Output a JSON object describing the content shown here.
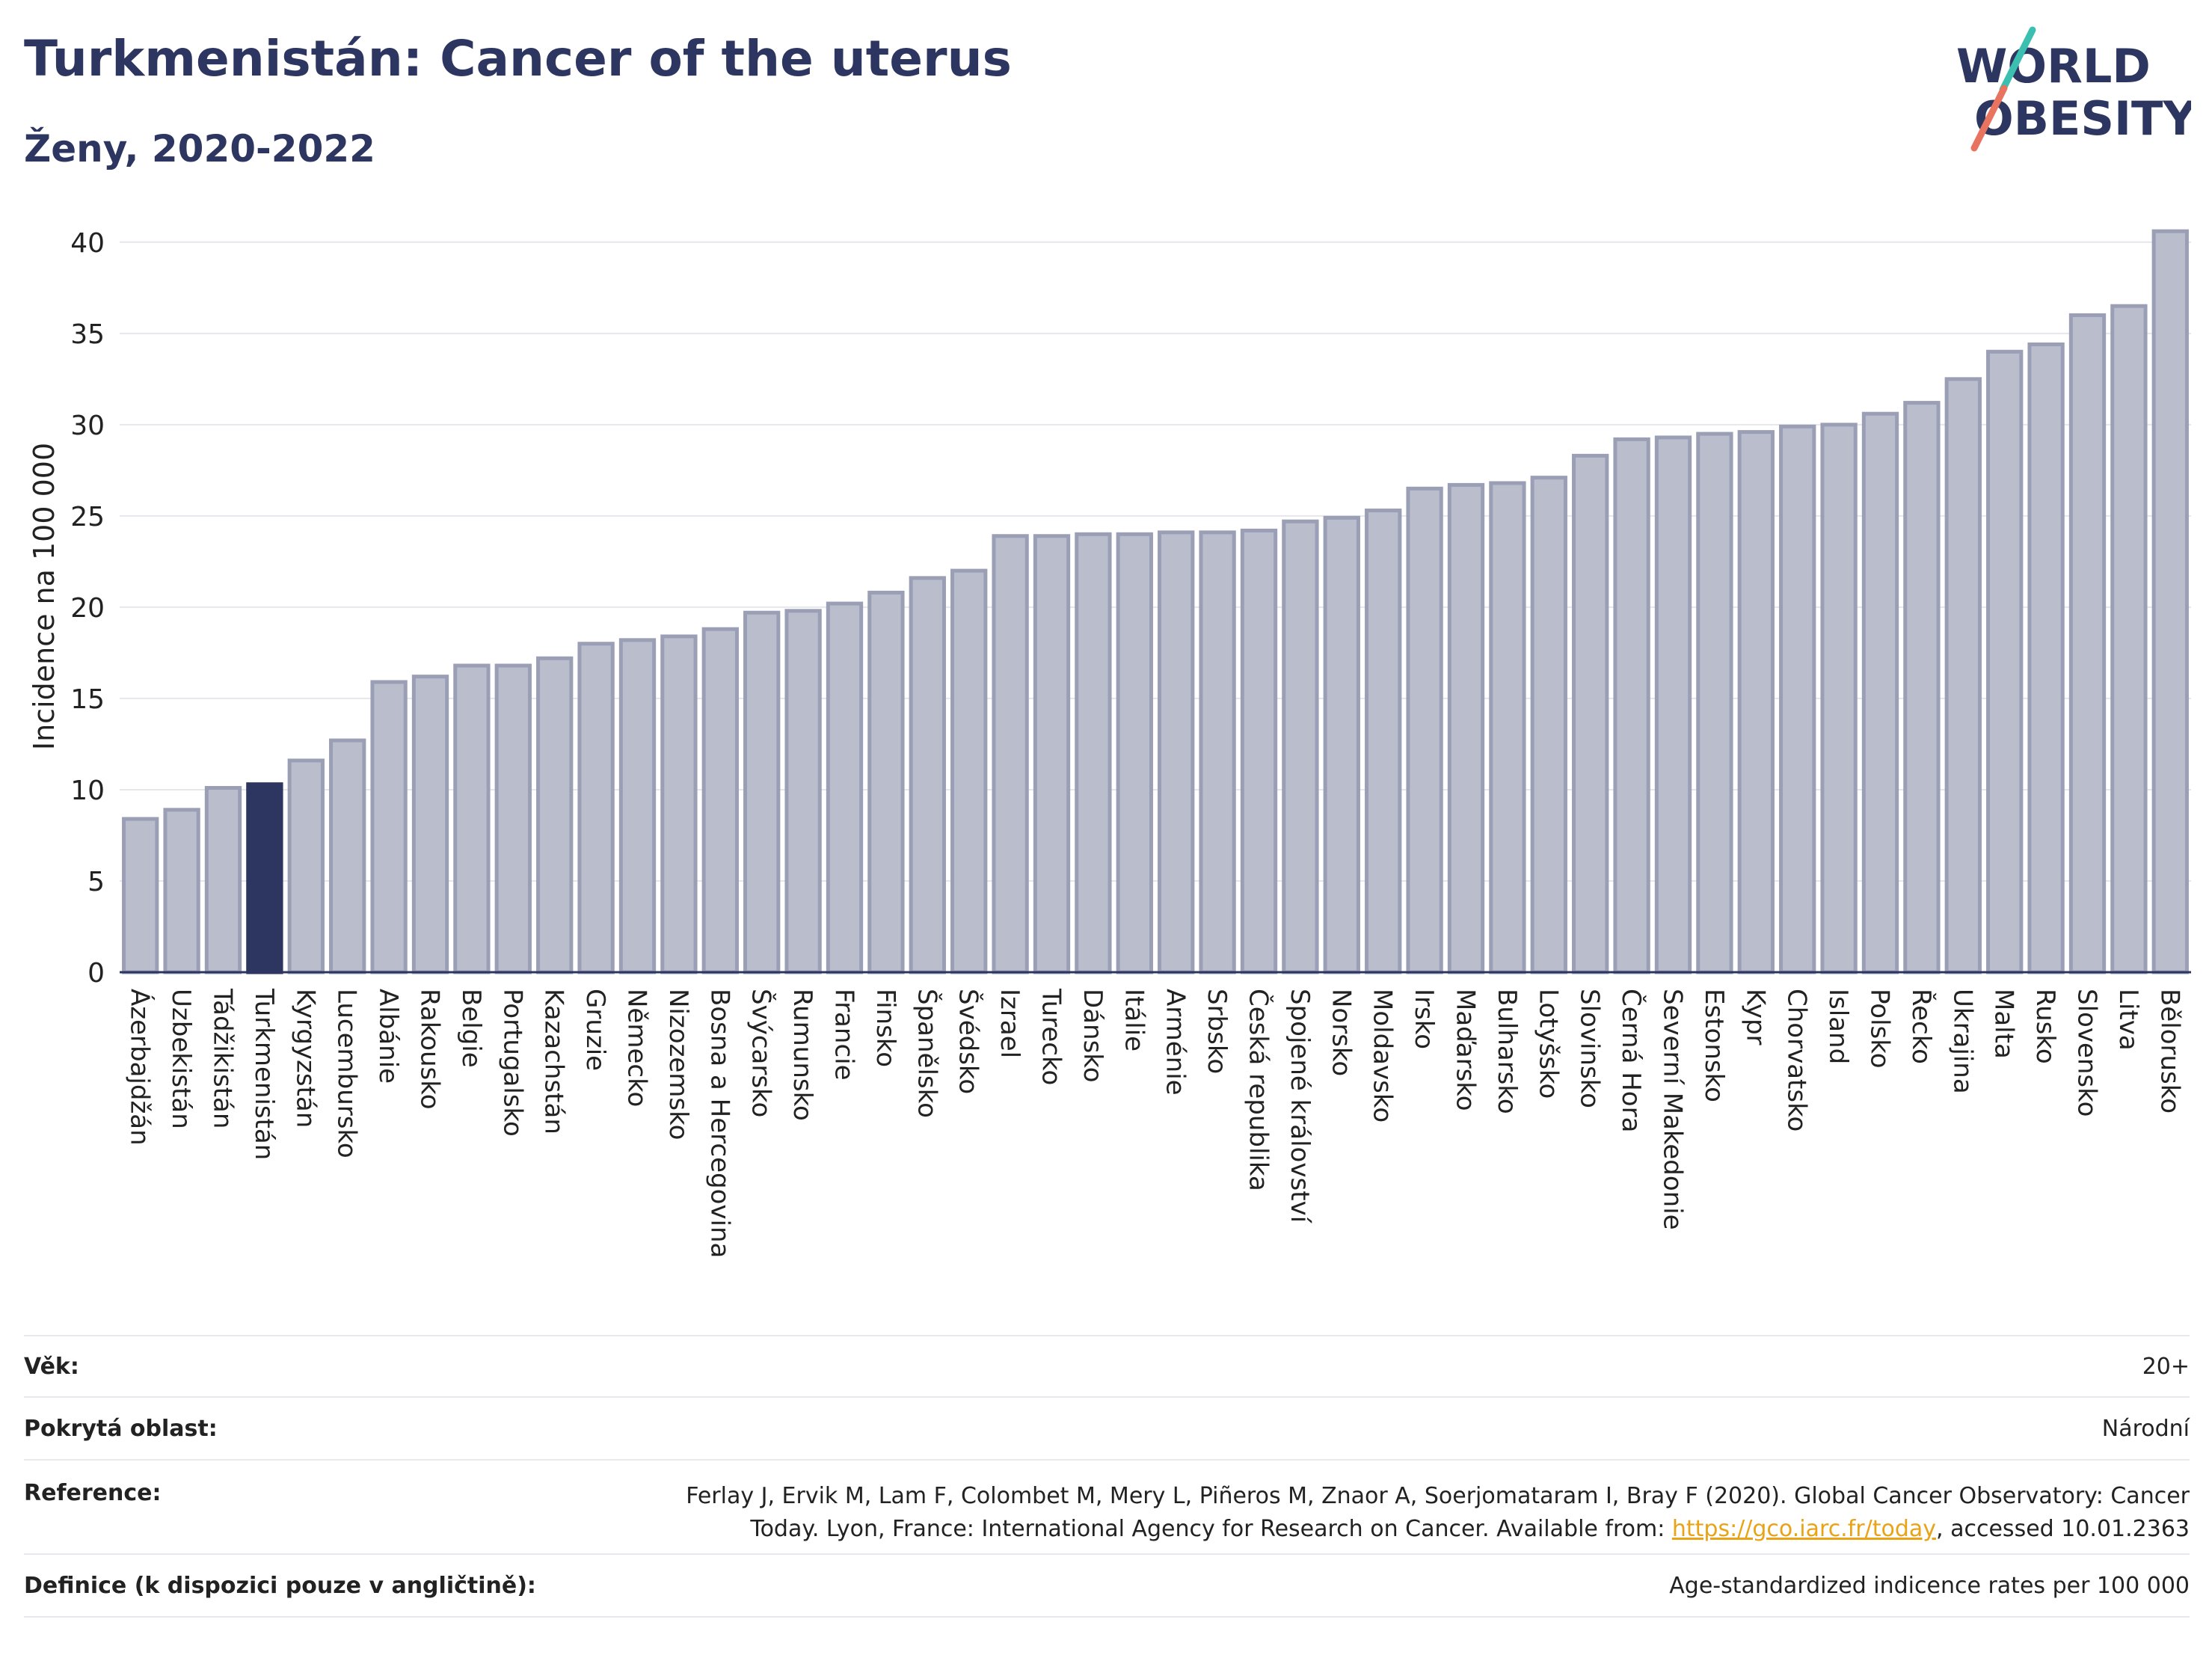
{
  "header": {
    "title": "Turkmenistán: Cancer of the uterus",
    "subtitle": "Ženy, 2020-2022"
  },
  "logo": {
    "line1": "WORLD",
    "line2": "OBESITY"
  },
  "colors": {
    "bar": "#b9bdcc",
    "bar_stroke": "#9a9fb6",
    "highlight": "#2d3561",
    "text": "#2d3561",
    "grid": "#e6e6ec"
  },
  "chart_data": {
    "type": "bar",
    "ylabel": "Incidence na 100 000",
    "ylim": [
      0,
      42
    ],
    "yticks": [
      0,
      5,
      10,
      15,
      20,
      25,
      30,
      35,
      40
    ],
    "grid": true,
    "highlight": "Turkmenistán",
    "categories": [
      "Ázerbajdžán",
      "Uzbekistán",
      "Tádžikistán",
      "Turkmenistán",
      "Kyrgyzstán",
      "Lucembursko",
      "Albánie",
      "Rakousko",
      "Belgie",
      "Portugalsko",
      "Kazachstán",
      "Gruzie",
      "Německo",
      "Nizozemsko",
      "Bosna a Hercegovina",
      "Švýcarsko",
      "Rumunsko",
      "Francie",
      "Finsko",
      "Španělsko",
      "Švédsko",
      "Izrael",
      "Turecko",
      "Dánsko",
      "Itálie",
      "Arménie",
      "Srbsko",
      "Česká republika",
      "Spojené království",
      "Norsko",
      "Moldavsko",
      "Irsko",
      "Maďarsko",
      "Bulharsko",
      "Lotyšsko",
      "Slovinsko",
      "Černá Hora",
      "Severní Makedonie",
      "Estonsko",
      "Kypr",
      "Chorvatsko",
      "Island",
      "Polsko",
      "Řecko",
      "Ukrajina",
      "Malta",
      "Rusko",
      "Slovensko",
      "Litva",
      "Bělorusko"
    ],
    "values": [
      8.4,
      8.9,
      10.1,
      10.3,
      11.6,
      12.7,
      15.9,
      16.2,
      16.8,
      16.8,
      17.2,
      18.0,
      18.2,
      18.4,
      18.8,
      19.7,
      19.8,
      20.2,
      20.8,
      21.6,
      22.0,
      23.9,
      23.9,
      24.0,
      24.0,
      24.1,
      24.1,
      24.2,
      24.7,
      24.9,
      25.3,
      26.5,
      26.7,
      26.8,
      27.1,
      28.3,
      29.2,
      29.3,
      29.5,
      29.6,
      29.9,
      30.0,
      30.6,
      31.2,
      32.5,
      34.0,
      34.4,
      36.0,
      36.5,
      40.6
    ]
  },
  "info": {
    "age_label": "Věk:",
    "age_value": "20+",
    "area_label": "Pokrytá oblast:",
    "area_value": "Národní",
    "ref_label": "Reference:",
    "ref_text1": "Ferlay J, Ervik M, Lam F, Colombet M, Mery L, Piñeros M, Znaor A, Soerjomataram I, Bray F (2020). Global Cancer Observatory: Cancer Today. Lyon, France: International Agency for Research on Cancer. Available from: ",
    "ref_link": "https://gco.iarc.fr/today",
    "ref_text2": ", accessed 10.01.2363",
    "def_label": "Definice (k dispozici pouze v angličtině):",
    "def_value": "Age-standardized indicence rates per 100 000"
  }
}
